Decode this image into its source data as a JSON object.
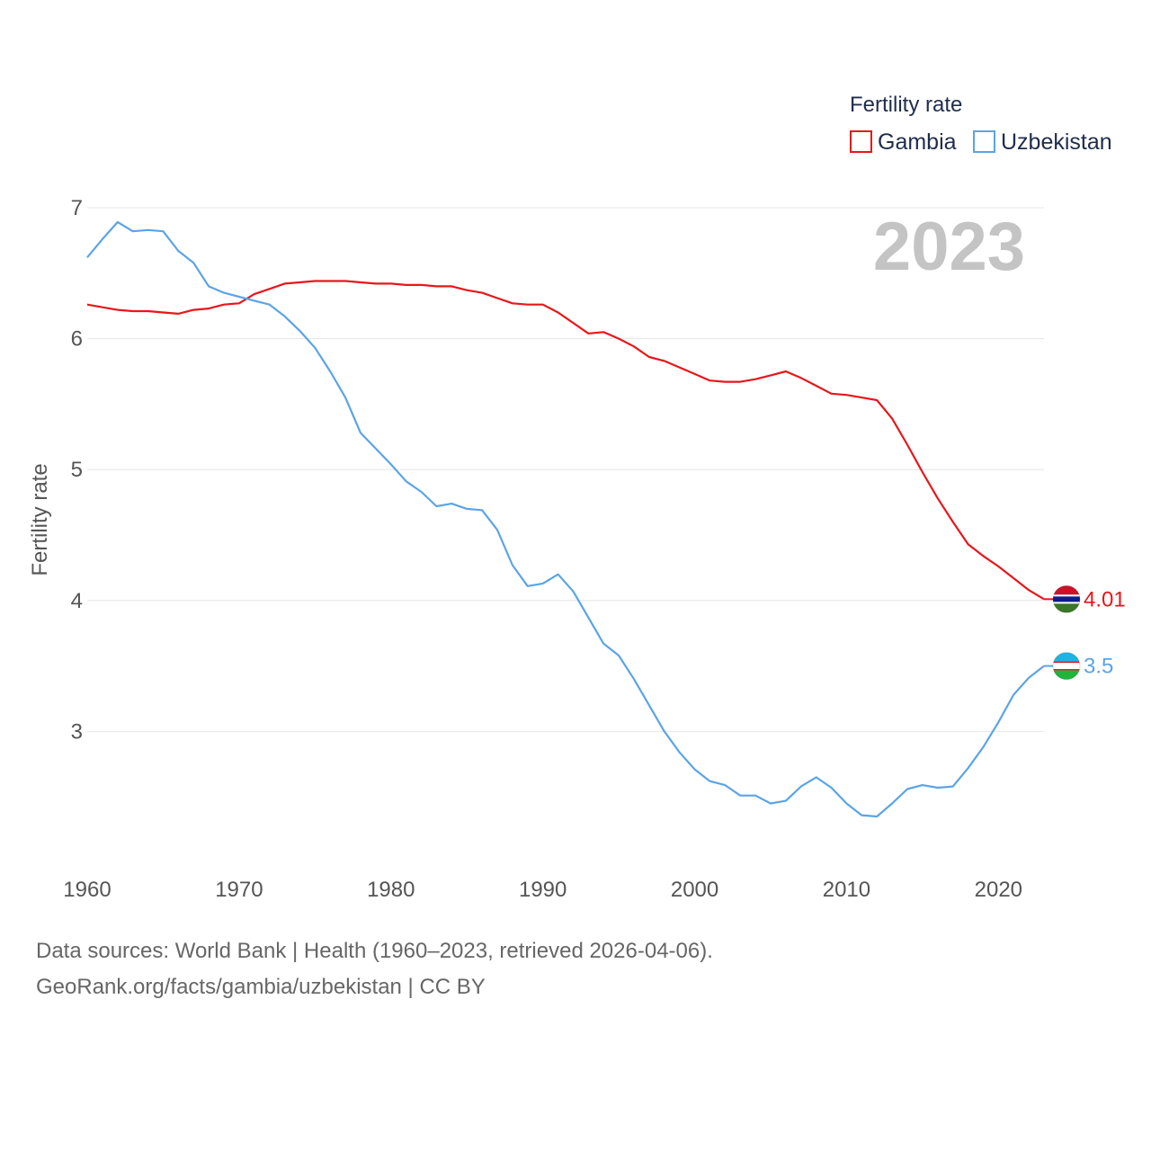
{
  "chart_data": {
    "type": "line",
    "legend_title": "Fertility rate",
    "ylabel": "Fertility rate",
    "xlabel": "",
    "year_label": "2023",
    "xlim": [
      1960,
      2023
    ],
    "ylim": [
      2.0,
      7.0
    ],
    "x_ticks": [
      1960,
      1970,
      1980,
      1990,
      2000,
      2010,
      2020
    ],
    "y_ticks": [
      3,
      4,
      5,
      6,
      7
    ],
    "grid": true,
    "legend_position": "top-right",
    "x": [
      1960,
      1961,
      1962,
      1963,
      1964,
      1965,
      1966,
      1967,
      1968,
      1969,
      1970,
      1971,
      1972,
      1973,
      1974,
      1975,
      1976,
      1977,
      1978,
      1979,
      1980,
      1981,
      1982,
      1983,
      1984,
      1985,
      1986,
      1987,
      1988,
      1989,
      1990,
      1991,
      1992,
      1993,
      1994,
      1995,
      1996,
      1997,
      1998,
      1999,
      2000,
      2001,
      2002,
      2003,
      2004,
      2005,
      2006,
      2007,
      2008,
      2009,
      2010,
      2011,
      2012,
      2013,
      2014,
      2015,
      2016,
      2017,
      2018,
      2019,
      2020,
      2021,
      2022,
      2023
    ],
    "series": [
      {
        "name": "Gambia",
        "color": "#e8161b",
        "end_label": "4.01",
        "values": [
          6.26,
          6.24,
          6.22,
          6.21,
          6.21,
          6.2,
          6.19,
          6.22,
          6.23,
          6.26,
          6.27,
          6.34,
          6.38,
          6.42,
          6.43,
          6.44,
          6.44,
          6.44,
          6.43,
          6.42,
          6.42,
          6.41,
          6.41,
          6.4,
          6.4,
          6.37,
          6.35,
          6.31,
          6.27,
          6.26,
          6.26,
          6.2,
          6.12,
          6.04,
          6.05,
          6.0,
          5.94,
          5.86,
          5.83,
          5.78,
          5.73,
          5.68,
          5.67,
          5.67,
          5.69,
          5.72,
          5.75,
          5.7,
          5.64,
          5.58,
          5.57,
          5.55,
          5.53,
          5.39,
          5.19,
          4.98,
          4.78,
          4.6,
          4.43,
          4.34,
          4.26,
          4.17,
          4.08,
          4.01
        ]
      },
      {
        "name": "Uzbekistan",
        "color": "#5ba4e6",
        "end_label": "3.5",
        "values": [
          6.62,
          6.76,
          6.89,
          6.82,
          6.83,
          6.82,
          6.67,
          6.58,
          6.4,
          6.35,
          6.32,
          6.29,
          6.26,
          6.17,
          6.06,
          5.93,
          5.75,
          5.55,
          5.28,
          5.16,
          5.04,
          4.91,
          4.83,
          4.72,
          4.74,
          4.7,
          4.69,
          4.54,
          4.27,
          4.11,
          4.13,
          4.2,
          4.07,
          3.87,
          3.67,
          3.58,
          3.4,
          3.2,
          3.0,
          2.84,
          2.71,
          2.62,
          2.59,
          2.51,
          2.51,
          2.45,
          2.47,
          2.58,
          2.65,
          2.57,
          2.45,
          2.36,
          2.35,
          2.45,
          2.56,
          2.59,
          2.57,
          2.58,
          2.72,
          2.88,
          3.07,
          3.28,
          3.41,
          3.5
        ]
      }
    ]
  },
  "source_line_1": "Data sources: World Bank | Health (1960–2023, retrieved 2026-04-06).",
  "source_line_2": "GeoRank.org/facts/gambia/uzbekistan | CC BY",
  "colors": {
    "gambia_flag": [
      "#ce1126",
      "#ffffff",
      "#0c1c8c",
      "#3a7728"
    ],
    "uzbekistan_flag": [
      "#1eb3e6",
      "#ffffff",
      "#ce1126",
      "#1eb53a"
    ]
  }
}
